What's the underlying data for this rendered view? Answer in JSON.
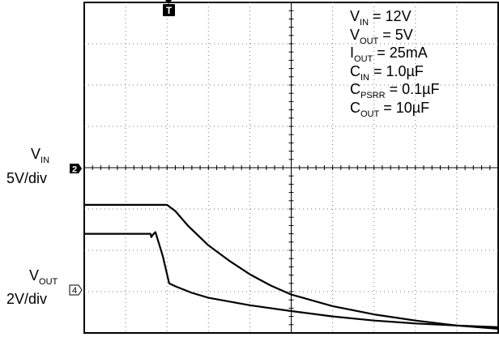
{
  "chart_data": {
    "type": "line",
    "title": "",
    "grid": true,
    "divisions": {
      "x": 10,
      "y": 8
    },
    "trigger_marker": "T",
    "conditions": [
      {
        "symbol": "V",
        "subscript": "IN",
        "value": "= 12V"
      },
      {
        "symbol": "V",
        "subscript": "OUT",
        "value": "= 5V"
      },
      {
        "symbol": "I",
        "subscript": "OUT",
        "value": "= 25mA"
      },
      {
        "symbol": "C",
        "subscript": "IN",
        "value": "= 1.0µF"
      },
      {
        "symbol": "C",
        "subscript": "PSRR",
        "value": "= 0.1µF"
      },
      {
        "symbol": "C",
        "subscript": "OUT",
        "value": "= 10µF"
      }
    ],
    "channels": [
      {
        "symbol": "V",
        "subscript": "IN",
        "scale": "5V/div",
        "marker": "2",
        "x_div": [
          0,
          1.6,
          1.62,
          1.66,
          1.72,
          1.9,
          2.05,
          2.2,
          2.6,
          3.0,
          4.0,
          5.0,
          6.0,
          7.0,
          8.0,
          9.0,
          10.0
        ],
        "y_div": [
          2.4,
          2.4,
          2.32,
          2.38,
          2.44,
          1.85,
          1.2,
          1.13,
          0.97,
          0.85,
          0.67,
          0.53,
          0.4,
          0.3,
          0.23,
          0.18,
          0.14
        ],
        "color": "#000000"
      },
      {
        "symbol": "V",
        "subscript": "OUT",
        "scale": "2V/div",
        "marker": "4",
        "x_div": [
          0,
          2.0,
          2.2,
          2.5,
          3.0,
          3.5,
          4.0,
          4.5,
          5.0,
          6.0,
          7.0,
          8.0,
          9.0,
          10.0
        ],
        "y_div": [
          3.1,
          3.1,
          2.95,
          2.6,
          2.12,
          1.75,
          1.42,
          1.15,
          0.93,
          0.65,
          0.45,
          0.3,
          0.18,
          0.1
        ],
        "color": "#000000"
      }
    ]
  }
}
